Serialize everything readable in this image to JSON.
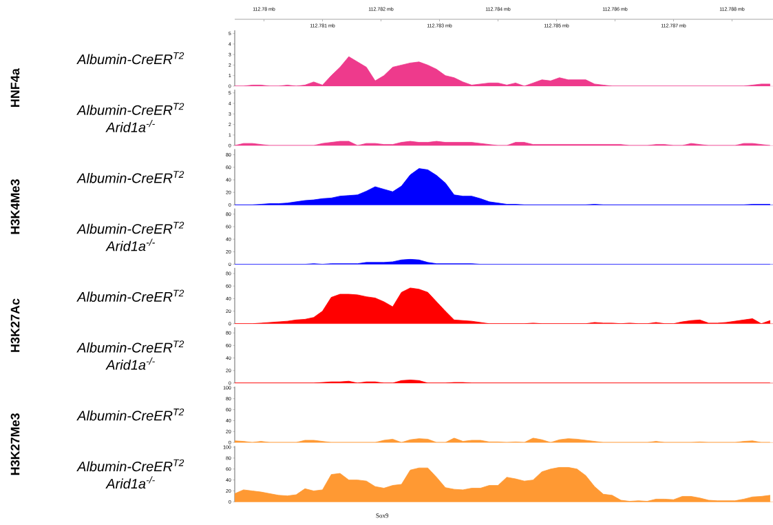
{
  "chart_data": [
    {
      "type": "area",
      "title": "Albumin-CreER$^{T2}$",
      "ylabel": "HNF4a",
      "color": "#ee3a8c",
      "x2lim": [
        112.7795,
        112.7887
      ],
      "x2ticks": [
        {
          "value": 112.78,
          "label": "112.78 mb"
        },
        {
          "value": 112.782,
          "label": "112.782 mb"
        },
        {
          "value": 112.784,
          "label": "112.784 mb"
        },
        {
          "value": 112.786,
          "label": "112.786 mb"
        },
        {
          "value": 112.788,
          "label": "112.788 mb"
        }
      ],
      "xticks": [
        {
          "value": 112.781,
          "label": "112.781 mb"
        },
        {
          "value": 112.783,
          "label": "112.783 mb"
        },
        {
          "value": 112.785,
          "label": "112.785 mb"
        },
        {
          "value": 112.787,
          "label": "112.787 mb"
        }
      ],
      "xlim": [
        112.7795,
        112.7887
      ],
      "ylim": [
        0,
        5.3
      ],
      "yticks": [
        0,
        1,
        2,
        3,
        4,
        5
      ],
      "x": [
        112.7795,
        112.77965,
        112.7798,
        112.77995,
        112.7801,
        112.78025,
        112.7804,
        112.78055,
        112.7807,
        112.78085,
        112.781,
        112.78115,
        112.7813,
        112.78145,
        112.7816,
        112.78175,
        112.7819,
        112.78205,
        112.7822,
        112.78235,
        112.7825,
        112.78265,
        112.7828,
        112.78295,
        112.7831,
        112.78325,
        112.7834,
        112.78355,
        112.7837,
        112.78385,
        112.784,
        112.78415,
        112.7843,
        112.78445,
        112.7846,
        112.78475,
        112.7849,
        112.78505,
        112.7852,
        112.78535,
        112.7855,
        112.78565,
        112.7858,
        112.78595,
        112.7861,
        112.78625,
        112.7864,
        112.78655,
        112.7867,
        112.78685,
        112.787,
        112.78715,
        112.7873,
        112.78745,
        112.7876,
        112.78775,
        112.7879,
        112.78805,
        112.7882,
        112.78835,
        112.7885,
        112.78865
      ],
      "values": [
        0,
        0,
        0.1,
        0.1,
        0,
        0,
        0.1,
        0,
        0.1,
        0.4,
        0.1,
        1.0,
        1.8,
        2.8,
        2.3,
        1.8,
        0.5,
        1.0,
        1.8,
        2.0,
        2.2,
        2.3,
        2.0,
        1.6,
        1.0,
        0.8,
        0.4,
        0.1,
        0.2,
        0.3,
        0.3,
        0.1,
        0.3,
        0,
        0.3,
        0.6,
        0.5,
        0.8,
        0.6,
        0.6,
        0.6,
        0.2,
        0.1,
        0,
        0,
        0,
        0,
        0,
        0,
        0,
        0,
        0,
        0,
        0,
        0,
        0,
        0,
        0,
        0,
        0.1,
        0.2,
        0.2
      ]
    },
    {
      "type": "area",
      "title": "Albumin-CreER$^{T2}$ Arid1a$^{-/-}$",
      "color": "#ee3a8c",
      "xlim": [
        112.7795,
        112.7887
      ],
      "ylim": [
        0,
        5.3
      ],
      "yticks": [
        0,
        1,
        2,
        3,
        4,
        5
      ],
      "tick_labels": "y",
      "x": [
        112.7795,
        112.77965,
        112.7798,
        112.77995,
        112.7801,
        112.78025,
        112.7804,
        112.78055,
        112.7807,
        112.78085,
        112.781,
        112.78115,
        112.7813,
        112.78145,
        112.7816,
        112.78175,
        112.7819,
        112.78205,
        112.7822,
        112.78235,
        112.7825,
        112.78265,
        112.7828,
        112.78295,
        112.7831,
        112.78325,
        112.7834,
        112.78355,
        112.7837,
        112.78385,
        112.784,
        112.78415,
        112.7843,
        112.78445,
        112.7846,
        112.78475,
        112.7849,
        112.78505,
        112.7852,
        112.78535,
        112.7855,
        112.78565,
        112.7858,
        112.78595,
        112.7861,
        112.78625,
        112.7864,
        112.78655,
        112.7867,
        112.78685,
        112.787,
        112.78715,
        112.7873,
        112.78745,
        112.7876,
        112.78775,
        112.7879,
        112.78805,
        112.7882,
        112.78835,
        112.7885,
        112.78865
      ],
      "values": [
        0,
        0.2,
        0.2,
        0.1,
        0,
        0,
        0,
        0,
        0,
        0,
        0.2,
        0.3,
        0.4,
        0.4,
        0,
        0.2,
        0.2,
        0.1,
        0.1,
        0.3,
        0.4,
        0.3,
        0.3,
        0.4,
        0.3,
        0.3,
        0.3,
        0.3,
        0.2,
        0.1,
        0,
        0,
        0.3,
        0.3,
        0.1,
        0.1,
        0.1,
        0.1,
        0.1,
        0.1,
        0.1,
        0.1,
        0.1,
        0.1,
        0.1,
        0,
        0,
        0,
        0.1,
        0.1,
        0,
        0,
        0.2,
        0.1,
        0,
        0,
        0,
        0,
        0.2,
        0.2,
        0.1,
        0
      ]
    },
    {
      "type": "area",
      "title": "Albumin-CreER$^{T2}$",
      "ylabel": "H3K4Me3",
      "color": "#0000ff",
      "xlim": [
        112.7795,
        112.7887
      ],
      "ylim": [
        0,
        89
      ],
      "yticks": [
        0,
        20,
        40,
        60,
        80
      ],
      "tick_labels": "y",
      "x": [
        112.7795,
        112.77965,
        112.7798,
        112.77995,
        112.7801,
        112.78025,
        112.7804,
        112.78055,
        112.7807,
        112.78085,
        112.781,
        112.78115,
        112.7813,
        112.78145,
        112.7816,
        112.78175,
        112.7819,
        112.78205,
        112.7822,
        112.78235,
        112.7825,
        112.78265,
        112.7828,
        112.78295,
        112.7831,
        112.78325,
        112.7834,
        112.78355,
        112.7837,
        112.78385,
        112.784,
        112.78415,
        112.7843,
        112.78445,
        112.7846,
        112.78475,
        112.7849,
        112.78505,
        112.7852,
        112.78535,
        112.7855,
        112.78565,
        112.7858,
        112.78595,
        112.7861,
        112.78625,
        112.7864,
        112.78655,
        112.7867,
        112.78685,
        112.787,
        112.78715,
        112.7873,
        112.78745,
        112.7876,
        112.78775,
        112.7879,
        112.78805,
        112.7882,
        112.78835,
        112.7885,
        112.78865
      ],
      "values": [
        0,
        0,
        0,
        1,
        2,
        2,
        3,
        5,
        7,
        8,
        10,
        11,
        14,
        15,
        16,
        22,
        29,
        25,
        21,
        30,
        48,
        58,
        56,
        47,
        35,
        16,
        14,
        14,
        10,
        5,
        3,
        1,
        1,
        0,
        0,
        0,
        0,
        0,
        0,
        0,
        0,
        1,
        0,
        0,
        0,
        0,
        0,
        0,
        0,
        0,
        0,
        0,
        0,
        0,
        0,
        0,
        0,
        0,
        0,
        1,
        1,
        1
      ]
    },
    {
      "type": "area",
      "title": "Albumin-CreER$^{T2}$ Arid1a$^{-/-}$",
      "color": "#0000ff",
      "xlim": [
        112.7795,
        112.7887
      ],
      "ylim": [
        0,
        89
      ],
      "yticks": [
        0,
        20,
        40,
        60,
        80
      ],
      "tick_labels": "y",
      "x": [
        112.7795,
        112.77965,
        112.7798,
        112.77995,
        112.7801,
        112.78025,
        112.7804,
        112.78055,
        112.7807,
        112.78085,
        112.781,
        112.78115,
        112.7813,
        112.78145,
        112.7816,
        112.78175,
        112.7819,
        112.78205,
        112.7822,
        112.78235,
        112.7825,
        112.78265,
        112.7828,
        112.78295,
        112.7831,
        112.78325,
        112.7834,
        112.78355,
        112.7837,
        112.78385,
        112.784,
        112.78415,
        112.7843,
        112.78445,
        112.7846,
        112.78475,
        112.7849,
        112.78505,
        112.7852,
        112.78535,
        112.7855,
        112.78565,
        112.7858,
        112.78595,
        112.7861,
        112.78625,
        112.7864,
        112.78655,
        112.7867,
        112.78685,
        112.787,
        112.78715,
        112.7873,
        112.78745,
        112.7876,
        112.78775,
        112.7879,
        112.78805,
        112.7882,
        112.78835,
        112.7885,
        112.78865
      ],
      "values": [
        0,
        0,
        0,
        0,
        0,
        0,
        0,
        0,
        0,
        1,
        0,
        1,
        1,
        1,
        1,
        3,
        3,
        3,
        4,
        7,
        8,
        7,
        3,
        1,
        1,
        1,
        1,
        1,
        0,
        0,
        0,
        0,
        0,
        0,
        0,
        0,
        0,
        0,
        0,
        0,
        0,
        0,
        0,
        0,
        0,
        0,
        0,
        0,
        0,
        0,
        0,
        0,
        0,
        0,
        0,
        0,
        0,
        0,
        0,
        0,
        0,
        0
      ]
    },
    {
      "type": "area",
      "title": "Albumin-CreER$^{T2}$",
      "ylabel": "H3K27Ac",
      "color": "#ff0000",
      "xlim": [
        112.7795,
        112.7887
      ],
      "ylim": [
        0,
        89
      ],
      "yticks": [
        0,
        20,
        40,
        60,
        80
      ],
      "tick_labels": "y",
      "x": [
        112.7795,
        112.77965,
        112.7798,
        112.77995,
        112.7801,
        112.78025,
        112.7804,
        112.78055,
        112.7807,
        112.78085,
        112.781,
        112.78115,
        112.7813,
        112.78145,
        112.7816,
        112.78175,
        112.7819,
        112.78205,
        112.7822,
        112.78235,
        112.7825,
        112.78265,
        112.7828,
        112.78295,
        112.7831,
        112.78325,
        112.7834,
        112.78355,
        112.7837,
        112.78385,
        112.784,
        112.78415,
        112.7843,
        112.78445,
        112.7846,
        112.78475,
        112.7849,
        112.78505,
        112.7852,
        112.78535,
        112.7855,
        112.78565,
        112.7858,
        112.78595,
        112.7861,
        112.78625,
        112.7864,
        112.78655,
        112.7867,
        112.78685,
        112.787,
        112.78715,
        112.7873,
        112.78745,
        112.7876,
        112.78775,
        112.7879,
        112.78805,
        112.7882,
        112.78835,
        112.7885,
        112.78865
      ],
      "values": [
        0,
        0,
        0,
        1,
        2,
        3,
        4,
        6,
        7,
        10,
        20,
        42,
        47,
        47,
        46,
        43,
        41,
        35,
        27,
        50,
        57,
        55,
        50,
        35,
        20,
        6,
        5,
        4,
        2,
        0,
        0,
        0,
        0,
        0,
        1,
        0,
        0,
        0,
        0,
        0,
        0,
        2,
        1,
        1,
        0,
        1,
        0,
        0,
        2,
        0,
        0,
        3,
        5,
        6,
        1,
        1,
        2,
        4,
        6,
        8,
        0,
        5
      ]
    },
    {
      "type": "area",
      "title": "Albumin-CreER$^{T2}$ Arid1a$^{-/-}$",
      "color": "#ff0000",
      "xlim": [
        112.7795,
        112.7887
      ],
      "ylim": [
        0,
        89
      ],
      "yticks": [
        0,
        20,
        40,
        60,
        80
      ],
      "tick_labels": "y",
      "x": [
        112.7795,
        112.77965,
        112.7798,
        112.77995,
        112.7801,
        112.78025,
        112.7804,
        112.78055,
        112.7807,
        112.78085,
        112.781,
        112.78115,
        112.7813,
        112.78145,
        112.7816,
        112.78175,
        112.7819,
        112.78205,
        112.7822,
        112.78235,
        112.7825,
        112.78265,
        112.7828,
        112.78295,
        112.7831,
        112.78325,
        112.7834,
        112.78355,
        112.7837,
        112.78385,
        112.784,
        112.78415,
        112.7843,
        112.78445,
        112.7846,
        112.78475,
        112.7849,
        112.78505,
        112.7852,
        112.78535,
        112.7855,
        112.78565,
        112.7858,
        112.78595,
        112.7861,
        112.78625,
        112.7864,
        112.78655,
        112.7867,
        112.78685,
        112.787,
        112.78715,
        112.7873,
        112.78745,
        112.7876,
        112.78775,
        112.7879,
        112.78805,
        112.7882,
        112.78835,
        112.7885,
        112.78865
      ],
      "values": [
        0,
        0,
        0,
        0,
        0,
        0,
        0,
        0,
        0,
        0,
        1,
        2,
        2,
        3,
        0,
        2,
        2,
        0,
        0,
        4,
        5,
        4,
        0,
        0,
        0,
        1,
        1,
        0,
        0,
        0,
        0,
        0,
        0,
        0,
        0,
        0,
        0,
        0,
        0,
        0,
        0,
        0,
        0,
        0,
        0,
        0,
        0,
        0,
        0,
        0,
        0,
        0,
        0,
        0,
        0,
        0,
        0,
        0,
        0,
        0,
        0,
        0
      ]
    },
    {
      "type": "area",
      "title": "Albumin-CreER$^{T2}$",
      "ylabel": "H3K27Me3",
      "color": "#ff9933",
      "xlim": [
        112.7795,
        112.7887
      ],
      "ylim": [
        0,
        102
      ],
      "yticks": [
        0,
        20,
        40,
        60,
        80,
        100
      ],
      "tick_labels": "y",
      "x": [
        112.7795,
        112.77965,
        112.7798,
        112.77995,
        112.7801,
        112.78025,
        112.7804,
        112.78055,
        112.7807,
        112.78085,
        112.781,
        112.78115,
        112.7813,
        112.78145,
        112.7816,
        112.78175,
        112.7819,
        112.78205,
        112.7822,
        112.78235,
        112.7825,
        112.78265,
        112.7828,
        112.78295,
        112.7831,
        112.78325,
        112.7834,
        112.78355,
        112.7837,
        112.78385,
        112.784,
        112.78415,
        112.7843,
        112.78445,
        112.7846,
        112.78475,
        112.7849,
        112.78505,
        112.7852,
        112.78535,
        112.7855,
        112.78565,
        112.7858,
        112.78595,
        112.7861,
        112.78625,
        112.7864,
        112.78655,
        112.7867,
        112.78685,
        112.787,
        112.78715,
        112.7873,
        112.78745,
        112.7876,
        112.78775,
        112.7879,
        112.78805,
        112.7882,
        112.78835,
        112.7885,
        112.78865
      ],
      "values": [
        3,
        2,
        0,
        2,
        0,
        0,
        0,
        0,
        4,
        4,
        2,
        0,
        0,
        0,
        0,
        0,
        0,
        4,
        6,
        0,
        5,
        7,
        6,
        0,
        0,
        8,
        2,
        4,
        4,
        1,
        1,
        0,
        1,
        0,
        8,
        5,
        0,
        5,
        7,
        6,
        4,
        2,
        0,
        0,
        0,
        0,
        0,
        0,
        2,
        0,
        0,
        0,
        0,
        1,
        0,
        0,
        0,
        0,
        2,
        3,
        0,
        0
      ]
    },
    {
      "type": "area",
      "title": "Albumin-CreER$^{T2}$ Arid1a$^{-/-}$",
      "color": "#ff9933",
      "xlim": [
        112.7795,
        112.7887
      ],
      "ylim": [
        0,
        102
      ],
      "yticks": [
        0,
        20,
        40,
        60,
        80,
        100
      ],
      "tick_labels": "y",
      "annotations": [
        "Sox9"
      ],
      "x": [
        112.7795,
        112.77965,
        112.7798,
        112.77995,
        112.7801,
        112.78025,
        112.7804,
        112.78055,
        112.7807,
        112.78085,
        112.781,
        112.78115,
        112.7813,
        112.78145,
        112.7816,
        112.78175,
        112.7819,
        112.78205,
        112.7822,
        112.78235,
        112.7825,
        112.78265,
        112.7828,
        112.78295,
        112.7831,
        112.78325,
        112.7834,
        112.78355,
        112.7837,
        112.78385,
        112.784,
        112.78415,
        112.7843,
        112.78445,
        112.7846,
        112.78475,
        112.7849,
        112.78505,
        112.7852,
        112.78535,
        112.7855,
        112.78565,
        112.7858,
        112.78595,
        112.7861,
        112.78625,
        112.7864,
        112.78655,
        112.7867,
        112.78685,
        112.787,
        112.78715,
        112.7873,
        112.78745,
        112.7876,
        112.78775,
        112.7879,
        112.78805,
        112.7882,
        112.78835,
        112.7885,
        112.78865
      ],
      "values": [
        15,
        22,
        20,
        18,
        15,
        12,
        11,
        13,
        24,
        20,
        22,
        50,
        52,
        40,
        40,
        38,
        28,
        25,
        30,
        32,
        58,
        62,
        62,
        45,
        26,
        23,
        22,
        25,
        25,
        30,
        30,
        45,
        42,
        38,
        40,
        55,
        60,
        63,
        63,
        60,
        48,
        28,
        14,
        12,
        3,
        1,
        2,
        1,
        5,
        5,
        4,
        10,
        10,
        7,
        3,
        2,
        2,
        2,
        5,
        9,
        10,
        12
      ]
    }
  ]
}
